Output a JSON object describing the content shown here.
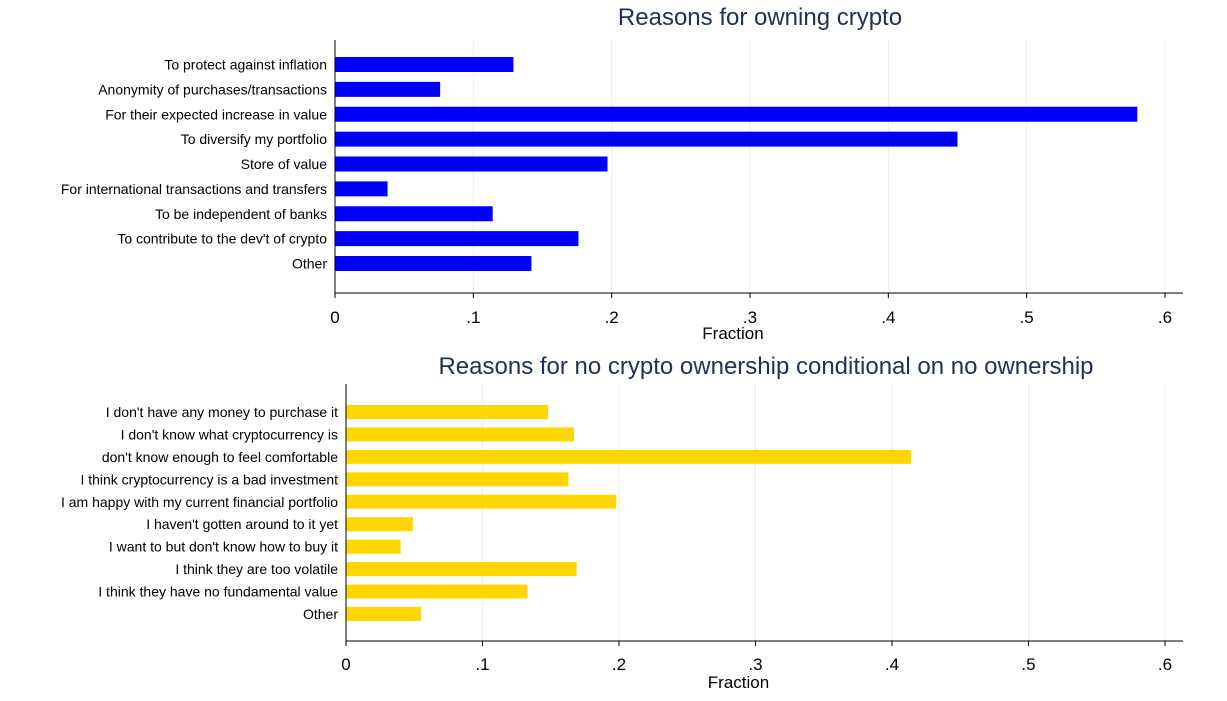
{
  "chart_data": [
    {
      "type": "bar",
      "orientation": "horizontal",
      "title": "Reasons for owning crypto",
      "xlabel": "Fraction",
      "ylabel": "",
      "xlim": [
        0,
        0.6
      ],
      "xticks": [
        0,
        0.1,
        0.2,
        0.3,
        0.4,
        0.5,
        0.6
      ],
      "xtick_labels": [
        "0",
        ".1",
        ".2",
        ".3",
        ".4",
        ".5",
        ".6"
      ],
      "grid": true,
      "color": "#0000ff",
      "categories": [
        "To protect against inflation",
        "Anonymity of purchases/transactions",
        "For their expected increase in value",
        "To diversify my portfolio",
        "Store of value",
        "For international transactions and transfers",
        "To be independent of banks",
        "To contribute to the dev't of crypto",
        "Other"
      ],
      "values": [
        0.129,
        0.076,
        0.58,
        0.45,
        0.197,
        0.038,
        0.114,
        0.176,
        0.142
      ]
    },
    {
      "type": "bar",
      "orientation": "horizontal",
      "title": "Reasons for no crypto ownership conditional on no ownership",
      "xlabel": "Fraction",
      "ylabel": "",
      "xlim": [
        0,
        0.6
      ],
      "xticks": [
        0,
        0.1,
        0.2,
        0.3,
        0.4,
        0.5,
        0.6
      ],
      "xtick_labels": [
        "0",
        ".1",
        ".2",
        ".3",
        ".4",
        ".5",
        ".6"
      ],
      "grid": true,
      "color": "#ffd700",
      "categories": [
        "I don't have any money to purchase it",
        "I don't know what cryptocurrency is",
        "don't know enough to feel comfortable",
        "I think cryptocurrency is a bad investment",
        "I am happy with my current financial portfolio",
        "I haven't gotten around to it yet",
        "I want to but don't know how to buy it",
        "I think they are too volatile",
        "I think they have no fundamental value",
        "Other"
      ],
      "values": [
        0.148,
        0.167,
        0.414,
        0.163,
        0.198,
        0.049,
        0.04,
        0.169,
        0.133,
        0.055
      ]
    }
  ]
}
